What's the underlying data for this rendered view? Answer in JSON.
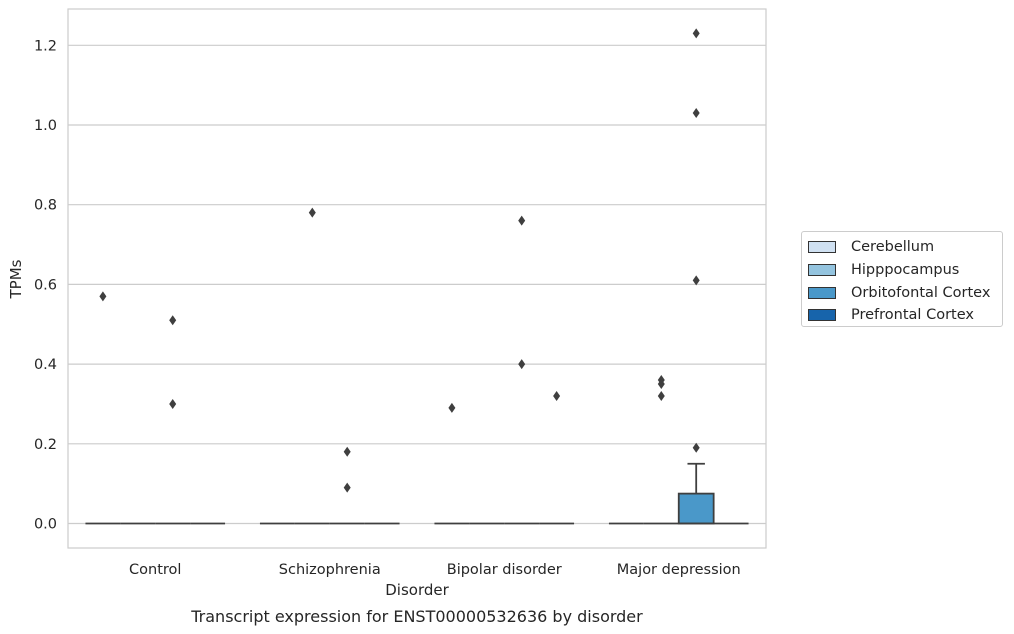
{
  "chart_data": {
    "type": "box",
    "title": "Transcript expression for ENST00000532636 by disorder",
    "xlabel": "Disorder",
    "ylabel": "TPMs",
    "categories": [
      "Control",
      "Schizophrenia",
      "Bipolar disorder",
      "Major depression"
    ],
    "yticks": [
      "0.0",
      "0.2",
      "0.4",
      "0.6",
      "0.8",
      "1.0",
      "1.2"
    ],
    "ylim": [
      -0.06,
      1.29
    ],
    "grid": "y",
    "legend_position": "right",
    "series": [
      {
        "name": "Cerebellum",
        "color": "#d0e1f2",
        "boxes": [
          {
            "q1": 0,
            "median": 0,
            "q3": 0,
            "whisker_high": 0
          },
          {
            "q1": 0,
            "median": 0,
            "q3": 0,
            "whisker_high": 0
          },
          {
            "q1": 0,
            "median": 0,
            "q3": 0,
            "whisker_high": 0
          },
          {
            "q1": 0,
            "median": 0,
            "q3": 0,
            "whisker_high": 0
          }
        ],
        "outliers": [
          [
            0.57
          ],
          [],
          [
            0.29
          ],
          []
        ]
      },
      {
        "name": "Hipppocampus",
        "color": "#94c4df",
        "boxes": [
          {
            "q1": 0,
            "median": 0,
            "q3": 0,
            "whisker_high": 0
          },
          {
            "q1": 0,
            "median": 0,
            "q3": 0,
            "whisker_high": 0
          },
          {
            "q1": 0,
            "median": 0,
            "q3": 0,
            "whisker_high": 0
          },
          {
            "q1": 0,
            "median": 0,
            "q3": 0,
            "whisker_high": 0
          }
        ],
        "outliers": [
          [],
          [
            0.78
          ],
          [],
          [
            0.36,
            0.35,
            0.32
          ]
        ]
      },
      {
        "name": "Orbitofontal Cortex",
        "color": "#4a98c9",
        "boxes": [
          {
            "q1": 0,
            "median": 0,
            "q3": 0,
            "whisker_high": 0
          },
          {
            "q1": 0,
            "median": 0,
            "q3": 0,
            "whisker_high": 0
          },
          {
            "q1": 0,
            "median": 0,
            "q3": 0,
            "whisker_high": 0
          },
          {
            "q1": 0,
            "median": 0,
            "q3": 0.075,
            "whisker_high": 0.15
          }
        ],
        "outliers": [
          [
            0.51,
            0.3
          ],
          [
            0.18,
            0.09
          ],
          [
            0.76,
            0.4
          ],
          [
            1.23,
            1.03,
            0.61,
            0.19
          ]
        ]
      },
      {
        "name": "Prefrontal Cortex",
        "color": "#1764ab",
        "boxes": [
          {
            "q1": 0,
            "median": 0,
            "q3": 0,
            "whisker_high": 0
          },
          {
            "q1": 0,
            "median": 0,
            "q3": 0,
            "whisker_high": 0
          },
          {
            "q1": 0,
            "median": 0,
            "q3": 0,
            "whisker_high": 0
          },
          {
            "q1": 0,
            "median": 0,
            "q3": 0,
            "whisker_high": 0
          }
        ],
        "outliers": [
          [],
          [],
          [
            0.32
          ],
          []
        ]
      }
    ]
  }
}
